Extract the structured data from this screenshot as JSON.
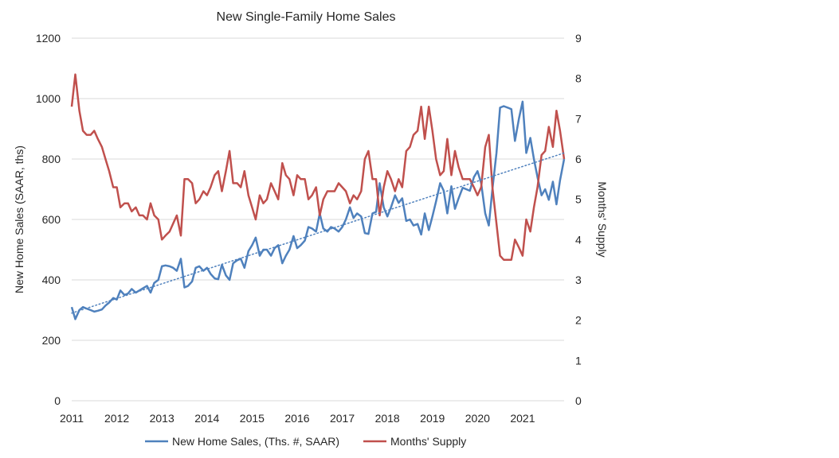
{
  "chart_data": {
    "type": "line",
    "title": "New Single-Family Home Sales",
    "y_left": {
      "label": "New Home Sales (SAAR, ths)",
      "min": 0,
      "max": 1200,
      "ticks": [
        "0",
        "200",
        "400",
        "600",
        "800",
        "1000",
        "1200"
      ]
    },
    "y_right": {
      "label": "Months' Supply",
      "min": 0,
      "max": 9,
      "ticks": [
        "0",
        "1",
        "2",
        "3",
        "4",
        "5",
        "6",
        "7",
        "8",
        "9"
      ]
    },
    "x_axis": {
      "min": 2011,
      "max": 2021.92,
      "ticks": [
        "2011",
        "2012",
        "2013",
        "2014",
        "2015",
        "2016",
        "2017",
        "2018",
        "2019",
        "2020",
        "2021"
      ]
    },
    "grid": "horizontal",
    "legend_position": "bottom",
    "series": [
      {
        "name": "New Home Sales, (Ths. #, SAAR)",
        "axis": "left",
        "color": "#4f81bd",
        "x": [
          2011.0,
          2011.08,
          2011.17,
          2011.25,
          2011.33,
          2011.42,
          2011.5,
          2011.58,
          2011.67,
          2011.75,
          2011.83,
          2011.92,
          2012.0,
          2012.08,
          2012.17,
          2012.25,
          2012.33,
          2012.42,
          2012.5,
          2012.58,
          2012.67,
          2012.75,
          2012.83,
          2012.92,
          2013.0,
          2013.08,
          2013.17,
          2013.25,
          2013.33,
          2013.42,
          2013.5,
          2013.58,
          2013.67,
          2013.75,
          2013.83,
          2013.92,
          2014.0,
          2014.08,
          2014.17,
          2014.25,
          2014.33,
          2014.42,
          2014.5,
          2014.58,
          2014.67,
          2014.75,
          2014.83,
          2014.92,
          2015.0,
          2015.08,
          2015.17,
          2015.25,
          2015.33,
          2015.42,
          2015.5,
          2015.58,
          2015.67,
          2015.75,
          2015.83,
          2015.92,
          2016.0,
          2016.08,
          2016.17,
          2016.25,
          2016.33,
          2016.42,
          2016.5,
          2016.58,
          2016.67,
          2016.75,
          2016.83,
          2016.92,
          2017.0,
          2017.08,
          2017.17,
          2017.25,
          2017.33,
          2017.42,
          2017.5,
          2017.58,
          2017.67,
          2017.75,
          2017.83,
          2017.92,
          2018.0,
          2018.08,
          2018.17,
          2018.25,
          2018.33,
          2018.42,
          2018.5,
          2018.58,
          2018.67,
          2018.75,
          2018.83,
          2018.92,
          2019.0,
          2019.08,
          2019.17,
          2019.25,
          2019.33,
          2019.42,
          2019.5,
          2019.58,
          2019.67,
          2019.75,
          2019.83,
          2019.92,
          2020.0,
          2020.08,
          2020.17,
          2020.25,
          2020.33,
          2020.42,
          2020.5,
          2020.58,
          2020.67,
          2020.75,
          2020.83,
          2020.92,
          2021.0,
          2021.08,
          2021.17,
          2021.25,
          2021.33,
          2021.42,
          2021.5,
          2021.58,
          2021.67,
          2021.75,
          2021.83,
          2021.92
        ],
        "values": [
          310,
          270,
          300,
          310,
          305,
          300,
          295,
          298,
          302,
          315,
          325,
          340,
          335,
          365,
          350,
          355,
          370,
          358,
          365,
          372,
          380,
          358,
          390,
          400,
          445,
          448,
          445,
          440,
          430,
          470,
          375,
          380,
          395,
          440,
          445,
          430,
          440,
          420,
          405,
          402,
          450,
          415,
          400,
          455,
          465,
          470,
          440,
          495,
          515,
          540,
          480,
          500,
          500,
          480,
          505,
          515,
          455,
          480,
          500,
          545,
          505,
          515,
          530,
          575,
          570,
          560,
          620,
          570,
          560,
          575,
          570,
          560,
          575,
          600,
          640,
          605,
          620,
          610,
          555,
          552,
          620,
          625,
          720,
          640,
          610,
          640,
          680,
          655,
          670,
          595,
          600,
          580,
          585,
          550,
          620,
          565,
          610,
          660,
          720,
          695,
          620,
          710,
          635,
          670,
          705,
          700,
          695,
          740,
          760,
          720,
          620,
          580,
          700,
          820,
          970,
          975,
          970,
          965,
          860,
          935,
          990,
          820,
          870,
          800,
          740,
          680,
          700,
          665,
          725,
          650,
          730,
          800
        ]
      },
      {
        "name": "Months' Supply",
        "axis": "right",
        "color": "#c0504d",
        "x": [
          2011.0,
          2011.08,
          2011.17,
          2011.25,
          2011.33,
          2011.42,
          2011.5,
          2011.58,
          2011.67,
          2011.75,
          2011.83,
          2011.92,
          2012.0,
          2012.08,
          2012.17,
          2012.25,
          2012.33,
          2012.42,
          2012.5,
          2012.58,
          2012.67,
          2012.75,
          2012.83,
          2012.92,
          2013.0,
          2013.08,
          2013.17,
          2013.25,
          2013.33,
          2013.42,
          2013.5,
          2013.58,
          2013.67,
          2013.75,
          2013.83,
          2013.92,
          2014.0,
          2014.08,
          2014.17,
          2014.25,
          2014.33,
          2014.42,
          2014.5,
          2014.58,
          2014.67,
          2014.75,
          2014.83,
          2014.92,
          2015.0,
          2015.08,
          2015.17,
          2015.25,
          2015.33,
          2015.42,
          2015.5,
          2015.58,
          2015.67,
          2015.75,
          2015.83,
          2015.92,
          2016.0,
          2016.08,
          2016.17,
          2016.25,
          2016.33,
          2016.42,
          2016.5,
          2016.58,
          2016.67,
          2016.75,
          2016.83,
          2016.92,
          2017.0,
          2017.08,
          2017.17,
          2017.25,
          2017.33,
          2017.42,
          2017.5,
          2017.58,
          2017.67,
          2017.75,
          2017.83,
          2017.92,
          2018.0,
          2018.08,
          2018.17,
          2018.25,
          2018.33,
          2018.42,
          2018.5,
          2018.58,
          2018.67,
          2018.75,
          2018.83,
          2018.92,
          2019.0,
          2019.08,
          2019.17,
          2019.25,
          2019.33,
          2019.42,
          2019.5,
          2019.58,
          2019.67,
          2019.75,
          2019.83,
          2019.92,
          2020.0,
          2020.08,
          2020.17,
          2020.25,
          2020.33,
          2020.42,
          2020.5,
          2020.58,
          2020.67,
          2020.75,
          2020.83,
          2020.92,
          2021.0,
          2021.08,
          2021.17,
          2021.25,
          2021.33,
          2021.42,
          2021.5,
          2021.58,
          2021.67,
          2021.75,
          2021.83,
          2021.92
        ],
        "values": [
          7.3,
          8.1,
          7.2,
          6.7,
          6.6,
          6.6,
          6.7,
          6.5,
          6.3,
          6.0,
          5.7,
          5.3,
          5.3,
          4.8,
          4.9,
          4.9,
          4.7,
          4.8,
          4.6,
          4.6,
          4.5,
          4.9,
          4.6,
          4.5,
          4.0,
          4.1,
          4.2,
          4.4,
          4.6,
          4.1,
          5.5,
          5.5,
          5.4,
          4.9,
          5.0,
          5.2,
          5.1,
          5.3,
          5.6,
          5.7,
          5.2,
          5.7,
          6.2,
          5.4,
          5.4,
          5.3,
          5.7,
          5.1,
          4.8,
          4.5,
          5.1,
          4.9,
          5.0,
          5.4,
          5.2,
          5.0,
          5.9,
          5.6,
          5.5,
          5.1,
          5.6,
          5.5,
          5.5,
          5.0,
          5.1,
          5.3,
          4.6,
          5.0,
          5.2,
          5.2,
          5.2,
          5.4,
          5.3,
          5.2,
          4.9,
          5.1,
          5.0,
          5.2,
          6.0,
          6.2,
          5.5,
          5.5,
          4.6,
          5.3,
          5.7,
          5.5,
          5.2,
          5.5,
          5.3,
          6.2,
          6.3,
          6.6,
          6.7,
          7.3,
          6.5,
          7.3,
          6.7,
          6.0,
          5.6,
          5.7,
          6.5,
          5.6,
          6.2,
          5.8,
          5.5,
          5.5,
          5.5,
          5.3,
          5.1,
          5.3,
          6.3,
          6.6,
          5.3,
          4.4,
          3.6,
          3.5,
          3.5,
          3.5,
          4.0,
          3.8,
          3.6,
          4.5,
          4.2,
          4.8,
          5.3,
          6.1,
          6.2,
          6.8,
          6.3,
          7.2,
          6.7,
          6.0
        ]
      },
      {
        "name": "",
        "axis": "left",
        "style": "dotted",
        "color": "#4f81bd",
        "x": [
          2011.0,
          2021.92
        ],
        "values": [
          290,
          820
        ]
      }
    ],
    "legend": [
      {
        "label": "New Home Sales, (Ths. #, SAAR)",
        "color": "#4f81bd"
      },
      {
        "label": "Months' Supply",
        "color": "#c0504d"
      }
    ]
  }
}
